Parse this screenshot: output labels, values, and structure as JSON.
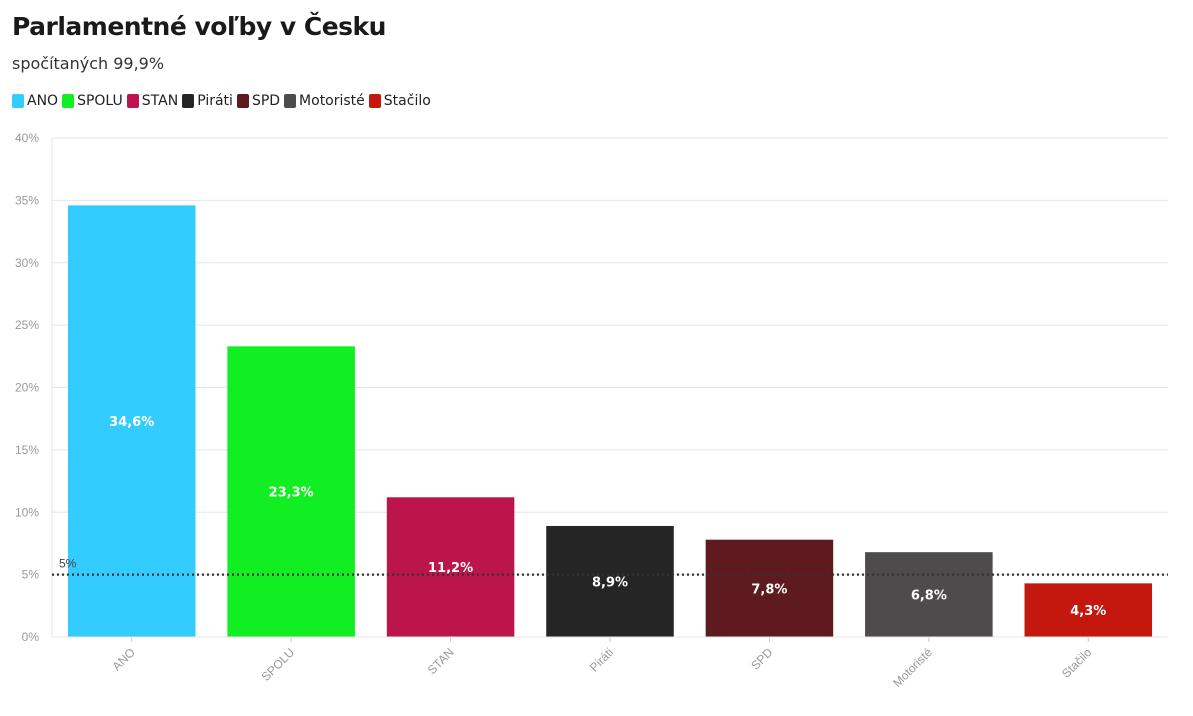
{
  "title": "Parlamentné voľby v Česku",
  "subtitle": "spočítaných 99,9%",
  "chart_data": {
    "type": "bar",
    "title": "Parlamentné voľby v Česku",
    "subtitle": "spočítaných 99,9%",
    "categories": [
      "ANO",
      "SPOLU",
      "STAN",
      "Piráti",
      "SPD",
      "Motoristé",
      "Stačilo"
    ],
    "values": [
      34.6,
      23.3,
      11.2,
      8.9,
      7.8,
      6.8,
      4.3
    ],
    "value_labels": [
      "34,6%",
      "23,3%",
      "11,2%",
      "8,9%",
      "7,8%",
      "6,8%",
      "4,3%"
    ],
    "colors": [
      "#33ccff",
      "#11ee22",
      "#bb154c",
      "#252525",
      "#5e1a1e",
      "#4d4b4b",
      "#c4170e"
    ],
    "legend": [
      "ANO",
      "SPOLU",
      "STAN",
      "Piráti",
      "SPD",
      "Motoristé",
      "Stačilo"
    ],
    "legend_position": "top-left",
    "ylim": [
      0,
      40
    ],
    "yticks": [
      0,
      5,
      10,
      15,
      20,
      25,
      30,
      35,
      40
    ],
    "ytick_labels": [
      "0%",
      "5%",
      "10%",
      "15%",
      "20%",
      "25%",
      "30%",
      "35%",
      "40%"
    ],
    "grid": true,
    "reference_line": {
      "value": 5,
      "label": "5%",
      "style": "dotted"
    },
    "xlabel": "",
    "ylabel": ""
  }
}
